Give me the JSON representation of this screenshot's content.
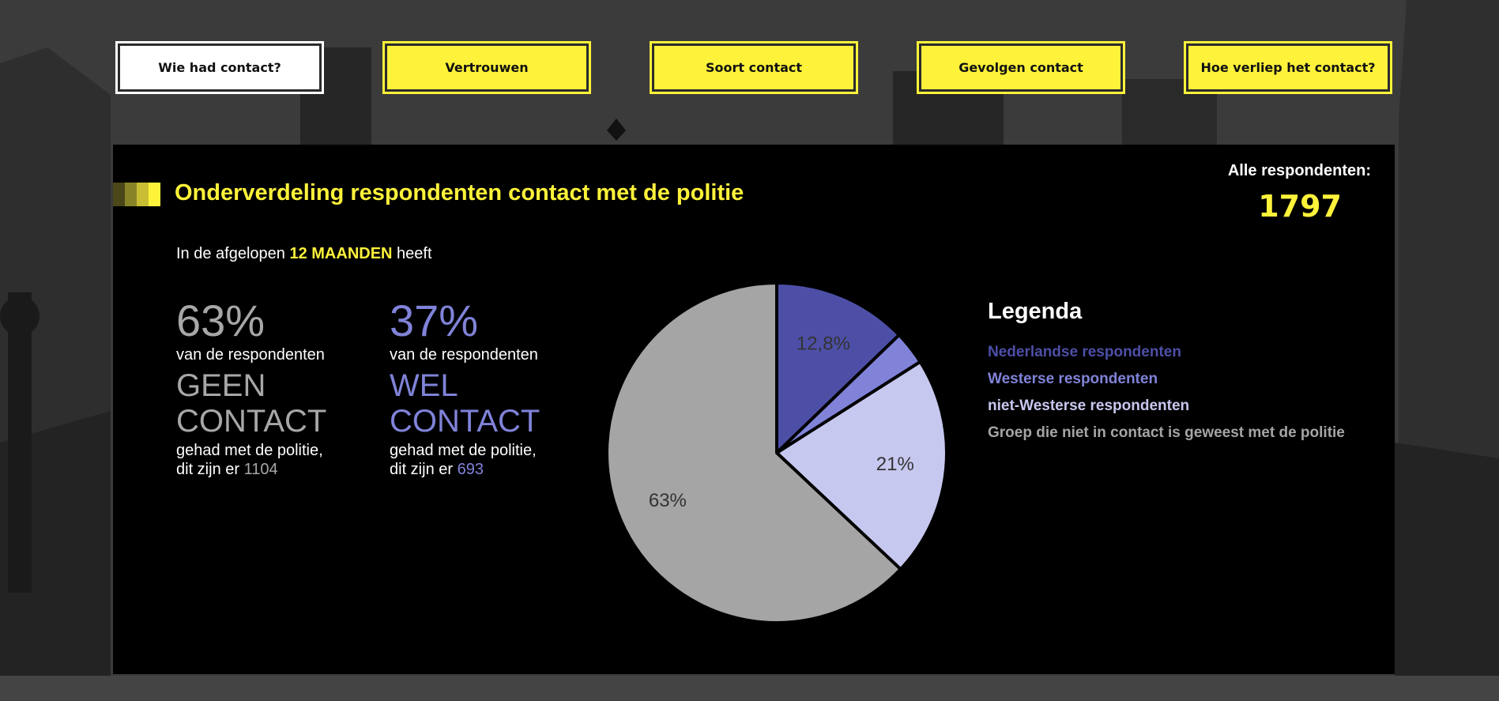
{
  "nav": {
    "tabs": [
      {
        "label": "Wie had contact?",
        "active": true
      },
      {
        "label": "Vertrouwen",
        "active": false
      },
      {
        "label": "Soort contact",
        "active": false
      },
      {
        "label": "Gevolgen contact",
        "active": false
      },
      {
        "label": "Hoe verliep het contact?",
        "active": false
      }
    ]
  },
  "panel": {
    "title": "Onderverdeling respondenten contact met de politie",
    "total_label": "Alle respondenten:",
    "total_value": "1797",
    "intro_before": "In de afgelopen ",
    "intro_highlight": "12 MAANDEN",
    "intro_after": " heeft"
  },
  "stats": {
    "geen": {
      "pct": "63%",
      "sub": "van de respondenten",
      "big_line1": "GEEN",
      "big_line2": "CONTACT",
      "tail_line1": "gehad met de politie,",
      "tail_prefix": "dit zijn er ",
      "count": "1104"
    },
    "wel": {
      "pct": "37%",
      "sub": "van de respondenten",
      "big_line1": "WEL",
      "big_line2": "CONTACT",
      "tail_line1": "gehad met de politie,",
      "tail_prefix": "dit zijn er ",
      "count": "693"
    }
  },
  "legend": {
    "title": "Legenda",
    "items": [
      {
        "label": "Nederlandse respondenten",
        "color": "#4d4fa7"
      },
      {
        "label": "Westerse respondenten",
        "color": "#8083d8"
      },
      {
        "label": "niet-Westerse respondenten",
        "color": "#c7c8ef"
      },
      {
        "label": "Groep die niet in contact is geweest met de politie",
        "color": "#a5a5a5"
      }
    ]
  },
  "colors": {
    "accent": "#fef23a",
    "panel_bg": "#000000"
  },
  "chart_data": {
    "type": "pie",
    "categories": [
      "Nederlandse respondenten",
      "Westerse respondenten",
      "niet-Westerse respondenten",
      "Groep die niet in contact is geweest met de politie"
    ],
    "values": [
      12.8,
      3.2,
      21,
      63
    ],
    "slice_labels": [
      "12,8%",
      "",
      "21%",
      "63%"
    ],
    "colors": [
      "#4d4fa7",
      "#8083d8",
      "#c7c8ef",
      "#a5a5a5"
    ],
    "legend_title": "Legenda",
    "legend_position": "right"
  }
}
